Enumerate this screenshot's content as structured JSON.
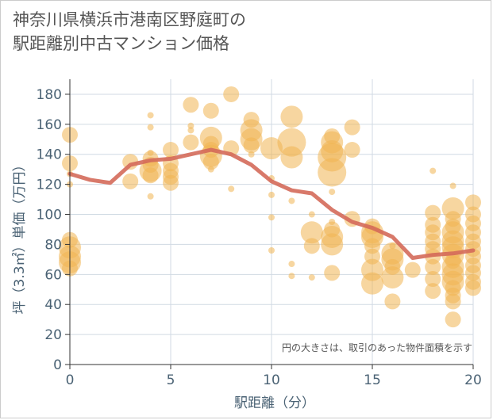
{
  "title_line1": "神奈川県横浜市港南区野庭町の",
  "title_line2": "駅距離別中古マンション価格",
  "note": "円の大きさは、取引のあった物件面積を示す",
  "colors": {
    "bubble": "#f0b452",
    "line": "#d46a5a",
    "grid": "#d0dae3",
    "text": "#4a6274"
  },
  "chart_data": {
    "type": "scatter",
    "xlabel": "駅距離（分）",
    "ylabel": "坪（3.3㎡）単価（万円）",
    "xlim": [
      0,
      20
    ],
    "ylim": [
      0,
      190
    ],
    "x_ticks": [
      0,
      5,
      10,
      15,
      20
    ],
    "y_ticks": [
      0,
      20,
      40,
      60,
      80,
      100,
      120,
      140,
      160,
      180
    ],
    "trend": {
      "x": [
        0,
        1,
        2,
        3,
        4,
        5,
        6,
        7,
        8,
        9,
        10,
        11,
        12,
        13,
        14,
        15,
        16,
        17,
        18,
        19,
        20
      ],
      "y": [
        127,
        123,
        121,
        133,
        136,
        137,
        140,
        143,
        140,
        133,
        122,
        116,
        114,
        103,
        95,
        91,
        85,
        71,
        73,
        74,
        76
      ]
    },
    "bubbles": [
      {
        "x": 0,
        "y": 153,
        "s": 2
      },
      {
        "x": 0,
        "y": 134,
        "s": 2
      },
      {
        "x": 0,
        "y": 127,
        "s": 1
      },
      {
        "x": 0,
        "y": 120,
        "s": 1
      },
      {
        "x": 0,
        "y": 83,
        "s": 2
      },
      {
        "x": 0,
        "y": 78,
        "s": 3
      },
      {
        "x": 0,
        "y": 72,
        "s": 3
      },
      {
        "x": 0,
        "y": 68,
        "s": 3
      },
      {
        "x": 0,
        "y": 64,
        "s": 2
      },
      {
        "x": 3,
        "y": 135,
        "s": 2
      },
      {
        "x": 3,
        "y": 122,
        "s": 2
      },
      {
        "x": 4,
        "y": 166,
        "s": 1
      },
      {
        "x": 4,
        "y": 158,
        "s": 1
      },
      {
        "x": 4,
        "y": 141,
        "s": 1
      },
      {
        "x": 4,
        "y": 137,
        "s": 2
      },
      {
        "x": 4,
        "y": 133,
        "s": 2
      },
      {
        "x": 4,
        "y": 129,
        "s": 3
      },
      {
        "x": 4,
        "y": 126,
        "s": 2
      },
      {
        "x": 4,
        "y": 112,
        "s": 1
      },
      {
        "x": 5,
        "y": 143,
        "s": 2
      },
      {
        "x": 5,
        "y": 134,
        "s": 2
      },
      {
        "x": 5,
        "y": 129,
        "s": 2
      },
      {
        "x": 5,
        "y": 125,
        "s": 2
      },
      {
        "x": 5,
        "y": 121,
        "s": 2
      },
      {
        "x": 6,
        "y": 173,
        "s": 2
      },
      {
        "x": 6,
        "y": 159,
        "s": 1
      },
      {
        "x": 6,
        "y": 156,
        "s": 1
      },
      {
        "x": 6,
        "y": 148,
        "s": 2
      },
      {
        "x": 7,
        "y": 169,
        "s": 2
      },
      {
        "x": 7,
        "y": 151,
        "s": 3
      },
      {
        "x": 7,
        "y": 147,
        "s": 2
      },
      {
        "x": 7,
        "y": 143,
        "s": 2
      },
      {
        "x": 7,
        "y": 139,
        "s": 3
      },
      {
        "x": 7,
        "y": 135,
        "s": 2
      },
      {
        "x": 7,
        "y": 130,
        "s": 1
      },
      {
        "x": 8,
        "y": 180,
        "s": 2
      },
      {
        "x": 8,
        "y": 144,
        "s": 2
      },
      {
        "x": 8,
        "y": 117,
        "s": 1
      },
      {
        "x": 9,
        "y": 163,
        "s": 2
      },
      {
        "x": 9,
        "y": 156,
        "s": 3
      },
      {
        "x": 9,
        "y": 150,
        "s": 3
      },
      {
        "x": 9,
        "y": 146,
        "s": 2
      },
      {
        "x": 9,
        "y": 140,
        "s": 1
      },
      {
        "x": 10,
        "y": 144,
        "s": 3
      },
      {
        "x": 10,
        "y": 124,
        "s": 1
      },
      {
        "x": 10,
        "y": 113,
        "s": 1
      },
      {
        "x": 10,
        "y": 98,
        "s": 1
      },
      {
        "x": 10,
        "y": 76,
        "s": 1
      },
      {
        "x": 11,
        "y": 165,
        "s": 3
      },
      {
        "x": 11,
        "y": 148,
        "s": 4
      },
      {
        "x": 11,
        "y": 138,
        "s": 3
      },
      {
        "x": 11,
        "y": 109,
        "s": 1
      },
      {
        "x": 11,
        "y": 67,
        "s": 1
      },
      {
        "x": 11,
        "y": 59,
        "s": 1
      },
      {
        "x": 12,
        "y": 100,
        "s": 1
      },
      {
        "x": 12,
        "y": 88,
        "s": 3
      },
      {
        "x": 12,
        "y": 79,
        "s": 2
      },
      {
        "x": 12,
        "y": 58,
        "s": 1
      },
      {
        "x": 13,
        "y": 152,
        "s": 2
      },
      {
        "x": 13,
        "y": 148,
        "s": 3
      },
      {
        "x": 13,
        "y": 142,
        "s": 3
      },
      {
        "x": 13,
        "y": 138,
        "s": 4
      },
      {
        "x": 13,
        "y": 128,
        "s": 4
      },
      {
        "x": 13,
        "y": 115,
        "s": 1
      },
      {
        "x": 13,
        "y": 95,
        "s": 1
      },
      {
        "x": 13,
        "y": 90,
        "s": 2
      },
      {
        "x": 13,
        "y": 85,
        "s": 3
      },
      {
        "x": 13,
        "y": 80,
        "s": 3
      },
      {
        "x": 13,
        "y": 61,
        "s": 2
      },
      {
        "x": 14,
        "y": 158,
        "s": 2
      },
      {
        "x": 14,
        "y": 143,
        "s": 2
      },
      {
        "x": 14,
        "y": 97,
        "s": 2
      },
      {
        "x": 15,
        "y": 92,
        "s": 2
      },
      {
        "x": 15,
        "y": 88,
        "s": 3
      },
      {
        "x": 15,
        "y": 85,
        "s": 3
      },
      {
        "x": 15,
        "y": 79,
        "s": 2
      },
      {
        "x": 15,
        "y": 72,
        "s": 2
      },
      {
        "x": 15,
        "y": 63,
        "s": 3
      },
      {
        "x": 15,
        "y": 54,
        "s": 3
      },
      {
        "x": 16,
        "y": 79,
        "s": 1
      },
      {
        "x": 16,
        "y": 74,
        "s": 3
      },
      {
        "x": 16,
        "y": 70,
        "s": 3
      },
      {
        "x": 16,
        "y": 65,
        "s": 2
      },
      {
        "x": 16,
        "y": 58,
        "s": 3
      },
      {
        "x": 16,
        "y": 42,
        "s": 2
      },
      {
        "x": 17,
        "y": 63,
        "s": 2
      },
      {
        "x": 18,
        "y": 129,
        "s": 1
      },
      {
        "x": 18,
        "y": 101,
        "s": 2
      },
      {
        "x": 18,
        "y": 93,
        "s": 2
      },
      {
        "x": 18,
        "y": 88,
        "s": 2
      },
      {
        "x": 18,
        "y": 82,
        "s": 2
      },
      {
        "x": 18,
        "y": 77,
        "s": 2
      },
      {
        "x": 18,
        "y": 72,
        "s": 2
      },
      {
        "x": 18,
        "y": 65,
        "s": 2
      },
      {
        "x": 18,
        "y": 57,
        "s": 2
      },
      {
        "x": 18,
        "y": 49,
        "s": 2
      },
      {
        "x": 19,
        "y": 119,
        "s": 1
      },
      {
        "x": 19,
        "y": 104,
        "s": 3
      },
      {
        "x": 19,
        "y": 97,
        "s": 2
      },
      {
        "x": 19,
        "y": 92,
        "s": 2
      },
      {
        "x": 19,
        "y": 88,
        "s": 3
      },
      {
        "x": 19,
        "y": 82,
        "s": 3
      },
      {
        "x": 19,
        "y": 78,
        "s": 3
      },
      {
        "x": 19,
        "y": 73,
        "s": 3
      },
      {
        "x": 19,
        "y": 69,
        "s": 2
      },
      {
        "x": 19,
        "y": 65,
        "s": 3
      },
      {
        "x": 19,
        "y": 60,
        "s": 3
      },
      {
        "x": 19,
        "y": 55,
        "s": 3
      },
      {
        "x": 19,
        "y": 51,
        "s": 2
      },
      {
        "x": 19,
        "y": 46,
        "s": 2
      },
      {
        "x": 19,
        "y": 42,
        "s": 2
      },
      {
        "x": 19,
        "y": 30,
        "s": 2
      },
      {
        "x": 20,
        "y": 108,
        "s": 2
      },
      {
        "x": 20,
        "y": 100,
        "s": 2
      },
      {
        "x": 20,
        "y": 94,
        "s": 2
      },
      {
        "x": 20,
        "y": 88,
        "s": 2
      },
      {
        "x": 20,
        "y": 82,
        "s": 2
      },
      {
        "x": 20,
        "y": 77,
        "s": 2
      },
      {
        "x": 20,
        "y": 72,
        "s": 2
      },
      {
        "x": 20,
        "y": 66,
        "s": 2
      },
      {
        "x": 20,
        "y": 61,
        "s": 2
      },
      {
        "x": 20,
        "y": 55,
        "s": 2
      },
      {
        "x": 20,
        "y": 51,
        "s": 2
      }
    ]
  }
}
